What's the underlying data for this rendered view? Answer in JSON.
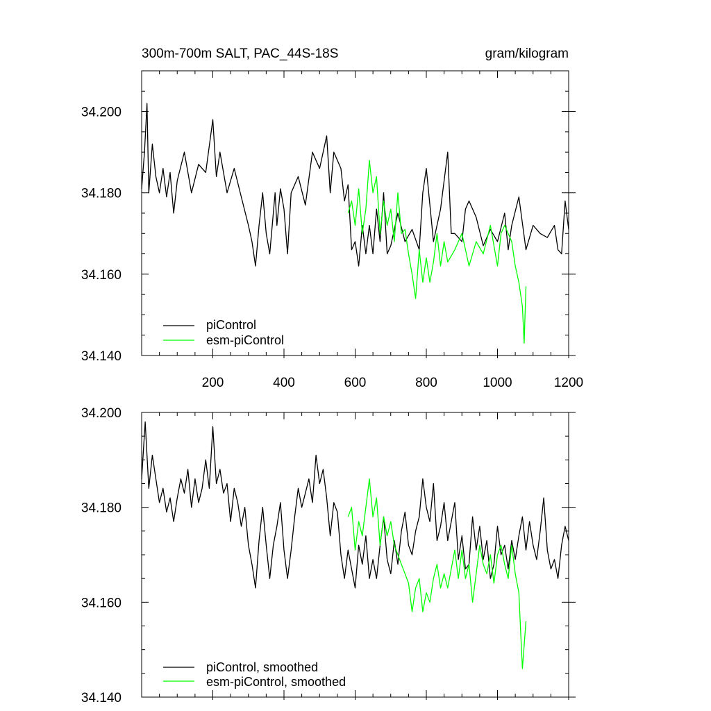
{
  "colors": {
    "piControl": "#000000",
    "esm_piControl": "#00ff00"
  },
  "chart_data": [
    {
      "type": "line",
      "title": "300m-700m SALT, PAC_44S-18S",
      "units": "gram/kilogram",
      "xlim": [
        0,
        1200
      ],
      "ylim": [
        34.14,
        34.21
      ],
      "xticks": [
        200,
        400,
        600,
        800,
        1000,
        1200
      ],
      "yticks": [
        "34.200",
        "34.180",
        "34.160",
        "34.140"
      ],
      "legend_position": "bottom-left",
      "series": [
        {
          "name": "piControl",
          "color_key": "piControl",
          "x": [
            0,
            8,
            15,
            20,
            30,
            40,
            50,
            60,
            70,
            80,
            90,
            100,
            120,
            140,
            160,
            180,
            200,
            210,
            220,
            240,
            260,
            280,
            300,
            310,
            320,
            330,
            340,
            350,
            360,
            375,
            380,
            390,
            400,
            410,
            420,
            440,
            460,
            480,
            500,
            520,
            530,
            540,
            560,
            570,
            580,
            590,
            600,
            610,
            620,
            630,
            640,
            650,
            660,
            670,
            680,
            690,
            700,
            720,
            740,
            760,
            780,
            790,
            800,
            820,
            840,
            860,
            870,
            880,
            900,
            910,
            920,
            940,
            960,
            980,
            1000,
            1020,
            1030,
            1040,
            1060,
            1080,
            1100,
            1120,
            1140,
            1160,
            1170,
            1180,
            1190,
            1200
          ],
          "y": [
            34.181,
            34.19,
            34.202,
            34.18,
            34.192,
            34.184,
            34.18,
            34.186,
            34.179,
            34.185,
            34.175,
            34.183,
            34.19,
            34.18,
            34.187,
            34.185,
            34.198,
            34.184,
            34.19,
            34.18,
            34.186,
            34.179,
            34.172,
            34.168,
            34.162,
            34.172,
            34.18,
            34.17,
            34.165,
            34.18,
            34.172,
            34.181,
            34.176,
            34.165,
            34.18,
            34.184,
            34.177,
            34.19,
            34.186,
            34.194,
            34.18,
            34.19,
            34.186,
            34.178,
            34.182,
            34.166,
            34.168,
            34.162,
            34.172,
            34.165,
            34.172,
            34.165,
            34.176,
            34.168,
            34.18,
            34.165,
            34.167,
            34.175,
            34.168,
            34.171,
            34.166,
            34.18,
            34.186,
            34.168,
            34.176,
            34.19,
            34.17,
            34.17,
            34.168,
            34.176,
            34.178,
            34.174,
            34.167,
            34.171,
            34.168,
            34.175,
            34.166,
            34.172,
            34.179,
            34.166,
            34.172,
            34.17,
            34.169,
            34.172,
            34.166,
            34.165,
            34.178,
            34.171
          ]
        },
        {
          "name": "esm-piControl",
          "color_key": "esm_piControl",
          "x": [
            580,
            590,
            600,
            610,
            620,
            630,
            640,
            650,
            660,
            670,
            680,
            690,
            700,
            710,
            720,
            730,
            740,
            750,
            760,
            770,
            780,
            790,
            800,
            810,
            820,
            830,
            840,
            850,
            860,
            880,
            900,
            920,
            940,
            960,
            980,
            1000,
            1010,
            1020,
            1040,
            1050,
            1060,
            1070,
            1075,
            1080
          ],
          "y": [
            34.175,
            34.178,
            34.172,
            34.181,
            34.17,
            34.176,
            34.188,
            34.18,
            34.184,
            34.17,
            34.178,
            34.172,
            34.176,
            34.168,
            34.18,
            34.17,
            34.171,
            34.165,
            34.16,
            34.154,
            34.166,
            34.158,
            34.164,
            34.158,
            34.163,
            34.17,
            34.162,
            34.168,
            34.163,
            34.166,
            34.17,
            34.162,
            34.168,
            34.165,
            34.172,
            34.162,
            34.17,
            34.172,
            34.168,
            34.162,
            34.158,
            34.152,
            34.143,
            34.157
          ]
        }
      ]
    },
    {
      "type": "line",
      "xlim": [
        0,
        1200
      ],
      "ylim": [
        34.14,
        34.2
      ],
      "yticks": [
        "34.200",
        "34.180",
        "34.160",
        "34.140"
      ],
      "legend_position": "bottom-left",
      "series": [
        {
          "name": "piControl, smoothed",
          "color_key": "piControl",
          "x": [
            0,
            10,
            20,
            30,
            40,
            50,
            60,
            70,
            80,
            90,
            100,
            110,
            120,
            130,
            140,
            150,
            160,
            170,
            180,
            190,
            200,
            210,
            220,
            230,
            240,
            250,
            260,
            270,
            280,
            290,
            300,
            310,
            320,
            330,
            340,
            350,
            360,
            370,
            380,
            390,
            400,
            410,
            420,
            430,
            440,
            450,
            460,
            470,
            480,
            490,
            500,
            510,
            520,
            530,
            540,
            550,
            560,
            570,
            580,
            590,
            600,
            610,
            620,
            630,
            640,
            650,
            660,
            670,
            680,
            690,
            700,
            710,
            720,
            730,
            740,
            750,
            760,
            770,
            780,
            790,
            800,
            810,
            820,
            830,
            840,
            850,
            860,
            870,
            880,
            890,
            900,
            910,
            920,
            930,
            940,
            950,
            960,
            970,
            980,
            990,
            1000,
            1010,
            1020,
            1030,
            1040,
            1050,
            1060,
            1070,
            1080,
            1090,
            1100,
            1110,
            1120,
            1130,
            1140,
            1150,
            1160,
            1170,
            1180,
            1190,
            1200
          ],
          "y": [
            34.186,
            34.198,
            34.184,
            34.191,
            34.186,
            34.181,
            34.184,
            34.179,
            34.182,
            34.177,
            34.182,
            34.186,
            34.183,
            34.188,
            34.18,
            34.186,
            34.181,
            34.184,
            34.19,
            34.184,
            34.197,
            34.185,
            34.188,
            34.183,
            34.185,
            34.177,
            34.184,
            34.181,
            34.176,
            34.18,
            34.172,
            34.168,
            34.163,
            34.173,
            34.18,
            34.172,
            34.165,
            34.172,
            34.176,
            34.181,
            34.171,
            34.165,
            34.171,
            34.178,
            34.184,
            34.18,
            34.183,
            34.186,
            34.181,
            34.191,
            34.185,
            34.188,
            34.182,
            34.174,
            34.181,
            34.179,
            34.17,
            34.165,
            34.171,
            34.167,
            34.163,
            34.172,
            34.168,
            34.174,
            34.165,
            34.169,
            34.165,
            34.172,
            34.178,
            34.169,
            34.166,
            34.173,
            34.168,
            34.175,
            34.179,
            34.172,
            34.17,
            34.175,
            34.178,
            34.186,
            34.18,
            34.177,
            34.185,
            34.173,
            34.176,
            34.181,
            34.173,
            34.177,
            34.181,
            34.169,
            34.174,
            34.167,
            34.168,
            34.178,
            34.171,
            34.176,
            34.169,
            34.173,
            34.165,
            34.168,
            34.176,
            34.17,
            34.172,
            34.167,
            34.173,
            34.169,
            34.174,
            34.178,
            34.171,
            34.177,
            34.172,
            34.169,
            34.175,
            34.182,
            34.171,
            34.167,
            34.169,
            34.165,
            34.172,
            34.176,
            34.173
          ]
        },
        {
          "name": "esm-piControl, smoothed",
          "color_key": "esm_piControl",
          "x": [
            580,
            590,
            600,
            610,
            620,
            630,
            640,
            650,
            660,
            670,
            680,
            690,
            700,
            710,
            720,
            730,
            740,
            750,
            760,
            770,
            780,
            790,
            800,
            810,
            820,
            830,
            840,
            850,
            860,
            870,
            880,
            890,
            900,
            910,
            920,
            930,
            940,
            950,
            960,
            970,
            980,
            990,
            1000,
            1010,
            1020,
            1030,
            1040,
            1050,
            1060,
            1065,
            1070,
            1080
          ],
          "y": [
            34.178,
            34.18,
            34.171,
            34.177,
            34.174,
            34.18,
            34.186,
            34.178,
            34.182,
            34.172,
            34.178,
            34.174,
            34.177,
            34.172,
            34.17,
            34.168,
            34.166,
            34.164,
            34.158,
            34.163,
            34.165,
            34.158,
            34.162,
            34.16,
            34.165,
            34.168,
            34.163,
            34.166,
            34.163,
            34.167,
            34.171,
            34.165,
            34.171,
            34.165,
            34.168,
            34.16,
            34.166,
            34.172,
            34.168,
            34.166,
            34.17,
            34.164,
            34.17,
            34.172,
            34.168,
            34.165,
            34.172,
            34.166,
            34.162,
            34.154,
            34.146,
            34.156
          ]
        }
      ]
    }
  ]
}
